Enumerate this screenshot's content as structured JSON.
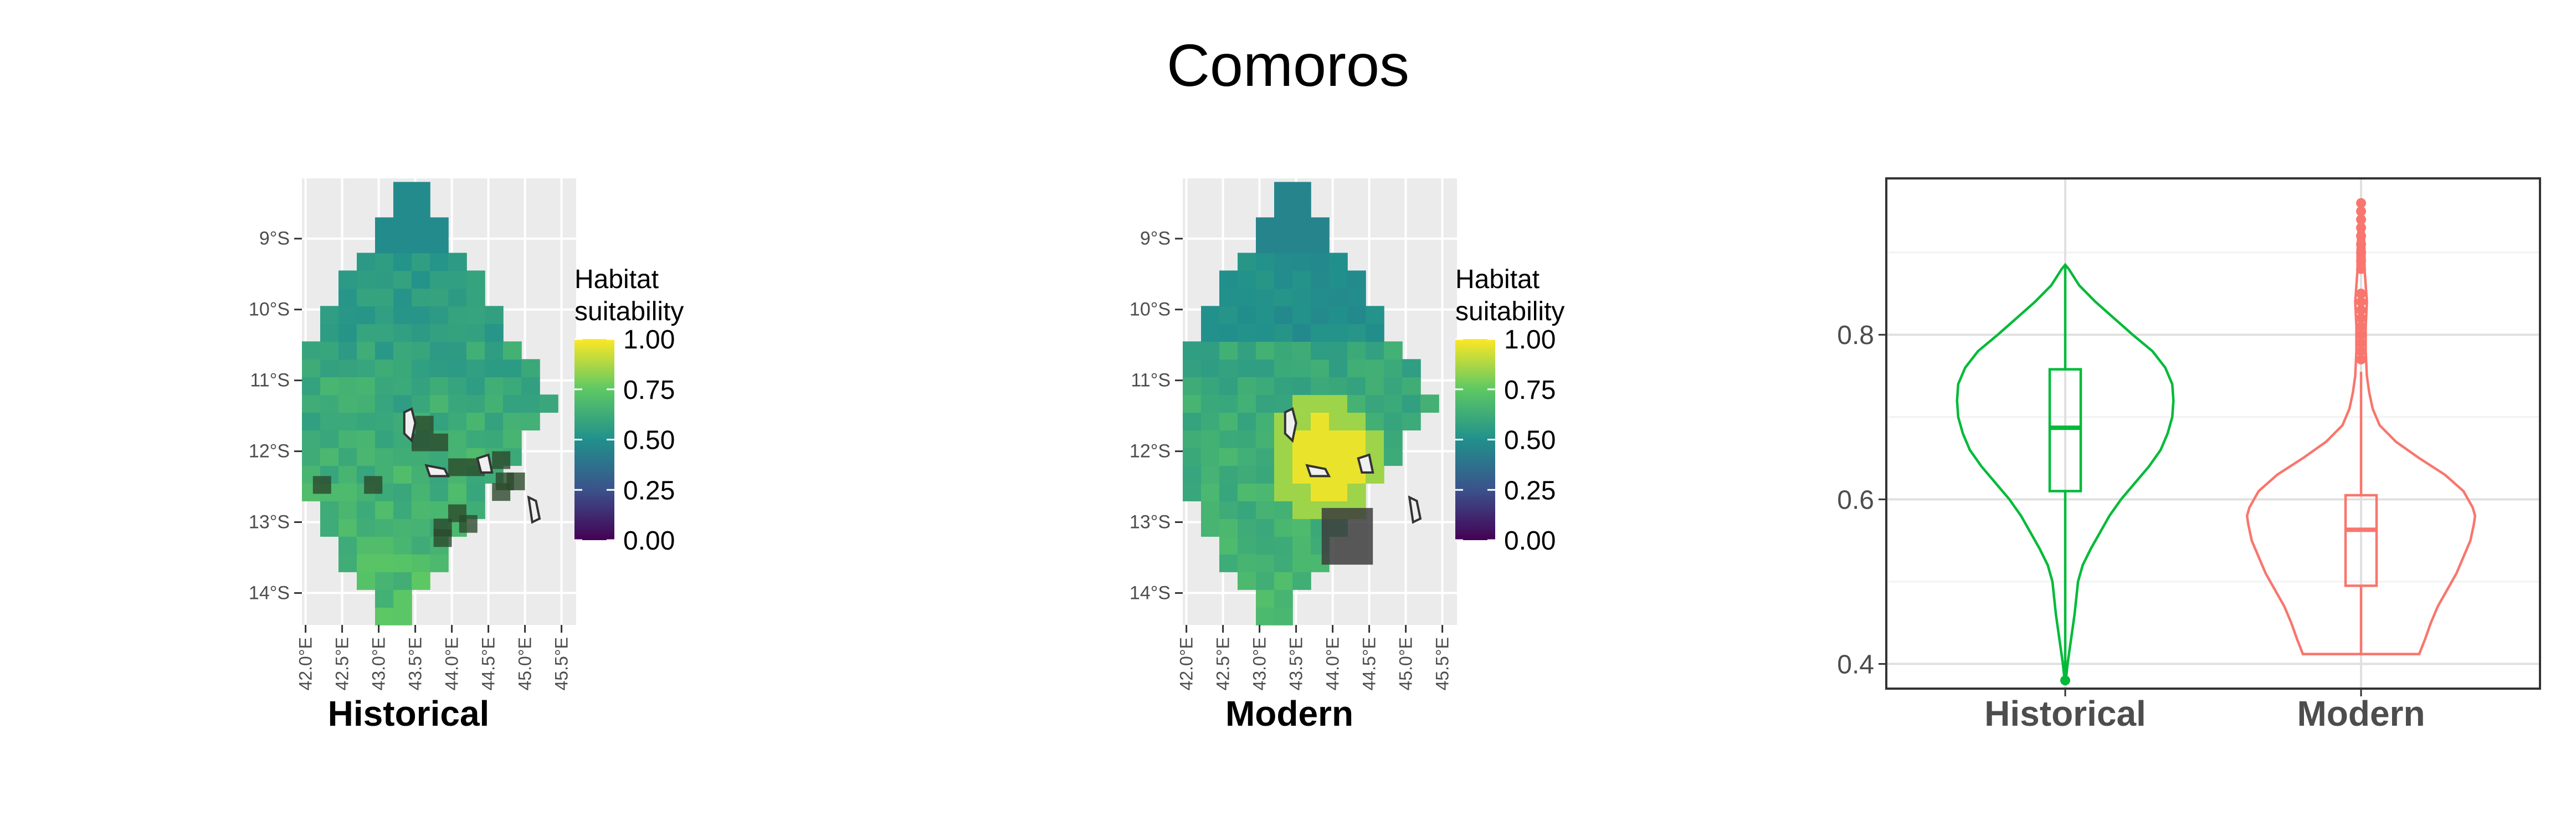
{
  "title": "Comoros",
  "colors": {
    "panel_bg": "#ebebeb",
    "grid": "#ffffff",
    "viridis": [
      "#440154",
      "#3b528b",
      "#21908c",
      "#5dc863",
      "#fde725"
    ],
    "historical": "#00ba38",
    "modern": "#f8766d"
  },
  "chart_data": [
    {
      "type": "heatmap",
      "caption": "Historical",
      "legend_title": [
        "Habitat",
        "suitability"
      ],
      "legend_ticks": [
        "1.00",
        "0.75",
        "0.50",
        "0.25",
        "0.00"
      ],
      "legend_range": [
        0,
        1
      ],
      "x_ticks": [
        "42.0°E",
        "42.5°E",
        "43.0°E",
        "43.5°E",
        "44.0°E",
        "44.5°E",
        "45.0°E",
        "45.5°E"
      ],
      "y_ticks": [
        "9°S",
        "10°S",
        "11°S",
        "12°S",
        "13°S",
        "14°S"
      ],
      "xlim": [
        41.95,
        45.7
      ],
      "ylim": [
        -14.45,
        -8.15
      ],
      "mode": "historical"
    },
    {
      "type": "heatmap",
      "caption": "Modern",
      "legend_title": [
        "Habitat",
        "suitability"
      ],
      "legend_ticks": [
        "1.00",
        "0.75",
        "0.50",
        "0.25",
        "0.00"
      ],
      "legend_range": [
        0,
        1
      ],
      "x_ticks": [
        "42.0°E",
        "42.5°E",
        "43.0°E",
        "43.5°E",
        "44.0°E",
        "44.5°E",
        "45.0°E",
        "45.5°E"
      ],
      "y_ticks": [
        "9°S",
        "10°S",
        "11°S",
        "12°S",
        "13°S",
        "14°S"
      ],
      "xlim": [
        41.95,
        45.7
      ],
      "ylim": [
        -14.45,
        -8.15
      ],
      "mode": "modern"
    },
    {
      "type": "violin",
      "categories": [
        "Historical",
        "Modern"
      ],
      "y_ticks": [
        "0.4",
        "0.6",
        "0.8"
      ],
      "ylim": [
        0.37,
        0.99
      ],
      "series": [
        {
          "min": 0.38,
          "q1": 0.61,
          "median": 0.687,
          "q3": 0.758,
          "max": 0.885,
          "outliers": [
            0.38
          ],
          "density": [
            [
              0.38,
              0.005
            ],
            [
              0.4,
              0.02
            ],
            [
              0.42,
              0.04
            ],
            [
              0.44,
              0.06
            ],
            [
              0.46,
              0.08
            ],
            [
              0.48,
              0.095
            ],
            [
              0.5,
              0.11
            ],
            [
              0.52,
              0.15
            ],
            [
              0.54,
              0.22
            ],
            [
              0.56,
              0.3
            ],
            [
              0.58,
              0.38
            ],
            [
              0.6,
              0.48
            ],
            [
              0.62,
              0.6
            ],
            [
              0.64,
              0.72
            ],
            [
              0.66,
              0.82
            ],
            [
              0.68,
              0.88
            ],
            [
              0.7,
              0.92
            ],
            [
              0.72,
              0.93
            ],
            [
              0.74,
              0.92
            ],
            [
              0.76,
              0.86
            ],
            [
              0.78,
              0.75
            ],
            [
              0.8,
              0.58
            ],
            [
              0.82,
              0.42
            ],
            [
              0.84,
              0.26
            ],
            [
              0.86,
              0.12
            ],
            [
              0.88,
              0.03
            ],
            [
              0.885,
              0.0
            ]
          ]
        },
        {
          "min": 0.412,
          "q1": 0.495,
          "median": 0.563,
          "q3": 0.605,
          "max": 0.755,
          "outliers": [
            0.77,
            0.78,
            0.79,
            0.8,
            0.81,
            0.82,
            0.83,
            0.84,
            0.85,
            0.88,
            0.89,
            0.9,
            0.91,
            0.92,
            0.93,
            0.94,
            0.95,
            0.96
          ],
          "density": [
            [
              0.412,
              0.5
            ],
            [
              0.43,
              0.55
            ],
            [
              0.45,
              0.6
            ],
            [
              0.47,
              0.66
            ],
            [
              0.49,
              0.74
            ],
            [
              0.51,
              0.82
            ],
            [
              0.53,
              0.88
            ],
            [
              0.55,
              0.94
            ],
            [
              0.57,
              0.97
            ],
            [
              0.58,
              0.98
            ],
            [
              0.59,
              0.96
            ],
            [
              0.61,
              0.88
            ],
            [
              0.63,
              0.72
            ],
            [
              0.65,
              0.5
            ],
            [
              0.67,
              0.3
            ],
            [
              0.69,
              0.16
            ],
            [
              0.71,
              0.1
            ],
            [
              0.73,
              0.07
            ],
            [
              0.75,
              0.05
            ],
            [
              0.78,
              0.04
            ],
            [
              0.81,
              0.04
            ],
            [
              0.84,
              0.05
            ],
            [
              0.86,
              0.04
            ],
            [
              0.88,
              0.03
            ],
            [
              0.9,
              0.03
            ],
            [
              0.92,
              0.025
            ],
            [
              0.94,
              0.015
            ],
            [
              0.96,
              0.005
            ]
          ]
        }
      ]
    }
  ]
}
